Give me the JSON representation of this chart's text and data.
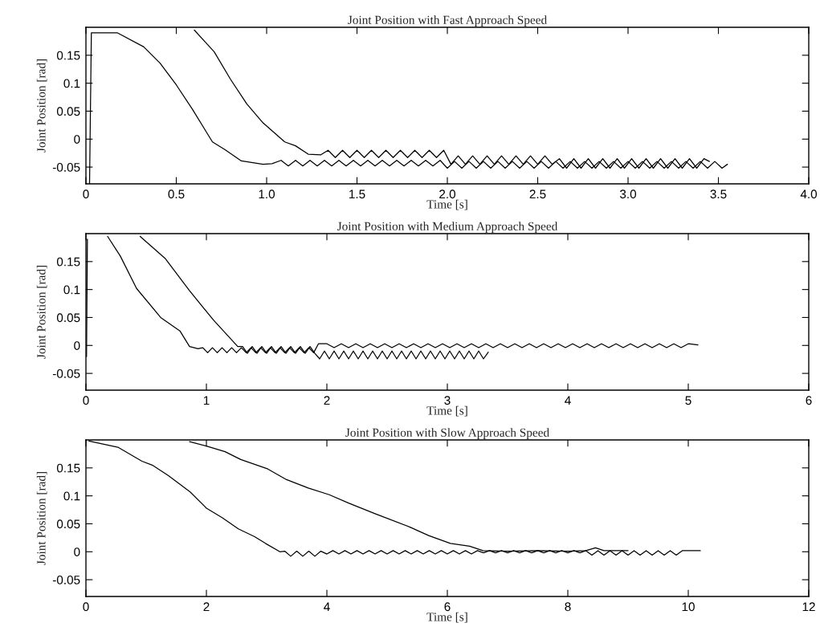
{
  "chart_data": [
    {
      "type": "line",
      "title": "Joint Position with Fast Approach Speed",
      "xlabel": "Time [s]",
      "ylabel": "Joint Position [rad]",
      "xlim": [
        0,
        4
      ],
      "ylim": [
        -0.08,
        0.2
      ],
      "xticks": [
        0,
        0.5,
        {
          "value": 1,
          "label": "1.0"
        },
        1.5,
        {
          "value": 2,
          "label": "2.0"
        },
        2.5,
        {
          "value": 3,
          "label": "3.0"
        },
        3.5,
        {
          "value": 4,
          "label": "4.0"
        }
      ],
      "yticks": [
        -0.05,
        0,
        0.05,
        0.1,
        0.15
      ],
      "series": [
        {
          "color": "#000000",
          "x": [
            0.02,
            0.03,
            0.1,
            0.175,
            0.32,
            0.41,
            0.5,
            0.59,
            0.7,
            0.77,
            0.86,
            0.98,
            1.03,
            1.08,
            1.12,
            1.16,
            1.2,
            1.24,
            1.28,
            1.32,
            1.36,
            1.4,
            1.44,
            1.48,
            1.52,
            1.56,
            1.6,
            1.64,
            1.68,
            1.72,
            1.76,
            1.8,
            1.84,
            1.88,
            1.92,
            1.96,
            2.0,
            2.04,
            2.08,
            2.12,
            2.16,
            2.2,
            2.24,
            2.28,
            2.32,
            2.36,
            2.4,
            2.44,
            2.48,
            2.52,
            2.56,
            2.6,
            2.64,
            2.68,
            2.72,
            2.76,
            2.8,
            2.84,
            2.88,
            2.92,
            2.96,
            3.0,
            3.04,
            3.08,
            3.12,
            3.16,
            3.2,
            3.24,
            3.28,
            3.32,
            3.36,
            3.4,
            3.44,
            3.48,
            3.52,
            3.55
          ],
          "values": [
            -0.08,
            0.19,
            0.19,
            0.19,
            0.165,
            0.136,
            0.097,
            0.053,
            -0.005,
            -0.019,
            -0.039,
            -0.045,
            -0.044,
            -0.038,
            -0.048,
            -0.038,
            -0.048,
            -0.038,
            -0.048,
            -0.038,
            -0.048,
            -0.038,
            -0.048,
            -0.038,
            -0.048,
            -0.038,
            -0.048,
            -0.038,
            -0.048,
            -0.038,
            -0.048,
            -0.038,
            -0.048,
            -0.038,
            -0.048,
            -0.038,
            -0.052,
            -0.04,
            -0.052,
            -0.04,
            -0.052,
            -0.04,
            -0.052,
            -0.04,
            -0.052,
            -0.04,
            -0.052,
            -0.04,
            -0.052,
            -0.04,
            -0.052,
            -0.04,
            -0.052,
            -0.04,
            -0.052,
            -0.04,
            -0.052,
            -0.04,
            -0.052,
            -0.04,
            -0.052,
            -0.04,
            -0.052,
            -0.04,
            -0.052,
            -0.04,
            -0.052,
            -0.04,
            -0.052,
            -0.04,
            -0.052,
            -0.04,
            -0.052,
            -0.04,
            -0.052,
            -0.045
          ]
        },
        {
          "color": "#000000",
          "x": [
            0.6,
            0.71,
            0.8,
            0.89,
            0.98,
            1.1,
            1.16,
            1.23,
            1.3,
            1.34,
            1.38,
            1.42,
            1.46,
            1.5,
            1.54,
            1.58,
            1.62,
            1.66,
            1.7,
            1.74,
            1.78,
            1.82,
            1.86,
            1.9,
            1.94,
            1.98,
            2.02,
            2.06,
            2.1,
            2.14,
            2.18,
            2.22,
            2.26,
            2.3,
            2.34,
            2.38,
            2.42,
            2.46,
            2.5,
            2.54,
            2.58,
            2.62,
            2.66,
            2.7,
            2.74,
            2.78,
            2.82,
            2.86,
            2.9,
            2.94,
            2.98,
            3.02,
            3.06,
            3.1,
            3.14,
            3.18,
            3.22,
            3.26,
            3.3,
            3.34,
            3.38,
            3.42,
            3.45
          ],
          "values": [
            0.195,
            0.156,
            0.107,
            0.063,
            0.029,
            -0.005,
            -0.012,
            -0.027,
            -0.028,
            -0.02,
            -0.033,
            -0.02,
            -0.033,
            -0.02,
            -0.033,
            -0.02,
            -0.033,
            -0.02,
            -0.033,
            -0.02,
            -0.033,
            -0.02,
            -0.033,
            -0.02,
            -0.033,
            -0.02,
            -0.045,
            -0.03,
            -0.045,
            -0.03,
            -0.045,
            -0.03,
            -0.045,
            -0.03,
            -0.045,
            -0.03,
            -0.045,
            -0.03,
            -0.045,
            -0.03,
            -0.045,
            -0.035,
            -0.052,
            -0.035,
            -0.052,
            -0.035,
            -0.052,
            -0.035,
            -0.052,
            -0.035,
            -0.052,
            -0.035,
            -0.052,
            -0.035,
            -0.052,
            -0.035,
            -0.052,
            -0.035,
            -0.052,
            -0.035,
            -0.052,
            -0.035,
            -0.04
          ]
        }
      ]
    },
    {
      "type": "line",
      "title": "Joint Position with Medium Approach Speed",
      "xlabel": "Time [s]",
      "ylabel": "Joint Position [rad]",
      "xlim": [
        0,
        6
      ],
      "ylim": [
        -0.08,
        0.2
      ],
      "xticks": [
        0,
        1,
        2,
        3,
        4,
        5,
        6
      ],
      "yticks": [
        -0.05,
        0,
        0.05,
        0.1,
        0.15
      ],
      "series": [
        {
          "color": "#000000",
          "x": [
            0.005,
            0.012,
            0.1,
            0.18,
            0.285,
            0.42,
            0.62,
            0.78,
            0.86,
            0.93,
            0.97,
            1.01,
            1.05,
            1.09,
            1.13,
            1.17,
            1.21,
            1.25,
            1.29,
            1.33,
            1.37,
            1.41,
            1.45,
            1.49,
            1.53,
            1.57,
            1.61,
            1.65,
            1.69,
            1.73,
            1.77,
            1.81,
            1.85,
            1.89,
            1.93,
            2.0,
            2.06,
            2.12,
            2.18,
            2.24,
            2.3,
            2.36,
            2.42,
            2.48,
            2.54,
            2.6,
            2.66,
            2.72,
            2.78,
            2.84,
            2.9,
            2.96,
            3.02,
            3.08,
            3.14,
            3.2,
            3.26,
            3.32,
            3.38,
            3.44,
            3.5,
            3.56,
            3.62,
            3.68,
            3.74,
            3.8,
            3.86,
            3.92,
            3.98,
            4.04,
            4.1,
            4.16,
            4.22,
            4.28,
            4.34,
            4.4,
            4.46,
            4.52,
            4.58,
            4.64,
            4.7,
            4.76,
            4.82,
            4.88,
            4.94,
            5.0,
            5.08
          ],
          "values": [
            -0.02,
            0.19,
            null,
            0.195,
            0.16,
            0.102,
            0.05,
            0.026,
            -0.002,
            -0.006,
            -0.004,
            -0.013,
            -0.004,
            -0.013,
            -0.004,
            -0.013,
            -0.004,
            -0.013,
            -0.004,
            -0.013,
            -0.004,
            -0.013,
            -0.004,
            -0.013,
            -0.004,
            -0.013,
            -0.004,
            -0.013,
            -0.004,
            -0.013,
            -0.004,
            -0.013,
            -0.004,
            -0.013,
            0.003,
            0.003,
            -0.004,
            0.003,
            -0.004,
            0.003,
            -0.004,
            0.003,
            -0.004,
            0.003,
            -0.004,
            0.003,
            -0.004,
            0.003,
            -0.004,
            0.003,
            -0.004,
            0.003,
            -0.004,
            0.003,
            -0.004,
            0.003,
            -0.004,
            0.003,
            -0.004,
            0.003,
            -0.004,
            0.003,
            -0.004,
            0.003,
            -0.004,
            0.003,
            -0.004,
            0.003,
            -0.004,
            0.003,
            -0.004,
            0.003,
            -0.004,
            0.003,
            -0.004,
            0.003,
            -0.004,
            0.003,
            -0.004,
            0.003,
            -0.004,
            0.003,
            -0.004,
            0.003,
            -0.004,
            0.003,
            0.001
          ]
        },
        {
          "color": "#000000",
          "x": [
            0.45,
            0.66,
            0.86,
            1.06,
            1.26,
            1.3,
            1.34,
            1.38,
            1.42,
            1.46,
            1.5,
            1.54,
            1.58,
            1.62,
            1.66,
            1.7,
            1.74,
            1.78,
            1.82,
            1.86,
            1.9,
            1.94,
            1.98,
            2.02,
            2.06,
            2.1,
            2.14,
            2.18,
            2.22,
            2.26,
            2.3,
            2.34,
            2.38,
            2.42,
            2.46,
            2.5,
            2.54,
            2.58,
            2.62,
            2.66,
            2.7,
            2.74,
            2.78,
            2.82,
            2.86,
            2.9,
            2.94,
            2.98,
            3.02,
            3.06,
            3.1,
            3.14,
            3.18,
            3.22,
            3.26,
            3.3,
            3.34
          ],
          "values": [
            0.195,
            0.155,
            0.098,
            0.045,
            -0.002,
            -0.002,
            -0.014,
            -0.002,
            -0.014,
            -0.002,
            -0.014,
            -0.002,
            -0.014,
            -0.002,
            -0.014,
            -0.002,
            -0.014,
            -0.002,
            -0.014,
            -0.002,
            -0.014,
            -0.024,
            -0.01,
            -0.024,
            -0.01,
            -0.024,
            -0.01,
            -0.024,
            -0.01,
            -0.024,
            -0.01,
            -0.024,
            -0.01,
            -0.024,
            -0.01,
            -0.024,
            -0.01,
            -0.024,
            -0.01,
            -0.024,
            -0.01,
            -0.024,
            -0.01,
            -0.024,
            -0.01,
            -0.024,
            -0.01,
            -0.024,
            -0.01,
            -0.024,
            -0.01,
            -0.024,
            -0.01,
            -0.024,
            -0.01,
            -0.024,
            -0.012
          ]
        }
      ]
    },
    {
      "type": "line",
      "title": "Joint Position with Slow Approach Speed",
      "xlabel": "Time [s]",
      "ylabel": "Joint Position [rad]",
      "xlim": [
        0,
        12
      ],
      "ylim": [
        -0.08,
        0.2
      ],
      "xticks": [
        0,
        2,
        4,
        6,
        8,
        10,
        12
      ],
      "yticks": [
        -0.05,
        0,
        0.05,
        0.1,
        0.15
      ],
      "series": [
        {
          "color": "#000000",
          "x": [
            0.05,
            0.53,
            0.93,
            1.1,
            1.37,
            1.73,
            2.0,
            2.26,
            2.53,
            2.8,
            2.98,
            3.22,
            3.3,
            3.4,
            3.5,
            3.6,
            3.7,
            3.8,
            3.9,
            4.0,
            4.1,
            4.2,
            4.3,
            4.4,
            4.5,
            4.6,
            4.7,
            4.8,
            4.9,
            5.0,
            5.1,
            5.2,
            5.3,
            5.4,
            5.5,
            5.6,
            5.7,
            5.8,
            5.9,
            6.0,
            6.1,
            6.2,
            6.3,
            6.4,
            6.5,
            6.6,
            6.7,
            6.8,
            6.9,
            7.0,
            7.1,
            7.2,
            7.3,
            7.4,
            7.5,
            7.6,
            7.7,
            7.8,
            7.9,
            8.0,
            8.1,
            8.2,
            8.3,
            8.4,
            8.5,
            8.6,
            8.7,
            8.8,
            8.9,
            9.0,
            9.1,
            9.2,
            9.3,
            9.4,
            9.5,
            9.6,
            9.7,
            9.8,
            9.9,
            10.2
          ],
          "values": [
            0.198,
            0.187,
            0.162,
            0.155,
            0.136,
            0.107,
            0.078,
            0.061,
            0.041,
            0.027,
            0.015,
            0,
            0.001,
            -0.008,
            0.001,
            -0.008,
            0.001,
            -0.008,
            0.001,
            -0.004,
            0.002,
            -0.004,
            0.002,
            -0.004,
            0.002,
            -0.004,
            0.002,
            -0.004,
            0.002,
            -0.004,
            0.002,
            -0.004,
            0.002,
            -0.004,
            0.002,
            -0.004,
            0.002,
            -0.004,
            0.002,
            -0.004,
            0.002,
            -0.004,
            0.002,
            -0.004,
            0.002,
            -0.002,
            0.002,
            -0.002,
            0.002,
            -0.002,
            0.002,
            -0.002,
            0.002,
            -0.002,
            0.002,
            -0.002,
            0.002,
            -0.002,
            0.002,
            -0.002,
            0.002,
            -0.002,
            0.002,
            -0.006,
            0.002,
            -0.006,
            0.002,
            -0.006,
            0.002,
            -0.006,
            0.002,
            -0.006,
            0.002,
            -0.006,
            0.002,
            -0.006,
            0.002,
            -0.006,
            0.002,
            0.002
          ]
        },
        {
          "color": "#000000",
          "x": [
            1.72,
            2.0,
            2.31,
            2.57,
            3.02,
            3.33,
            3.69,
            4.04,
            4.36,
            4.8,
            5.38,
            5.69,
            6.05,
            6.37,
            6.59,
            7.0,
            7.5,
            8.0,
            8.3,
            8.46,
            8.6,
            9.0
          ],
          "values": [
            0.197,
            0.189,
            0.179,
            0.165,
            0.148,
            0.129,
            0.114,
            0.102,
            0.087,
            0.068,
            0.044,
            0.029,
            0.015,
            0.01,
            0.002,
            0.001,
            0.002,
            0.001,
            0.002,
            0.007,
            0.002,
            0.002
          ]
        }
      ]
    }
  ]
}
